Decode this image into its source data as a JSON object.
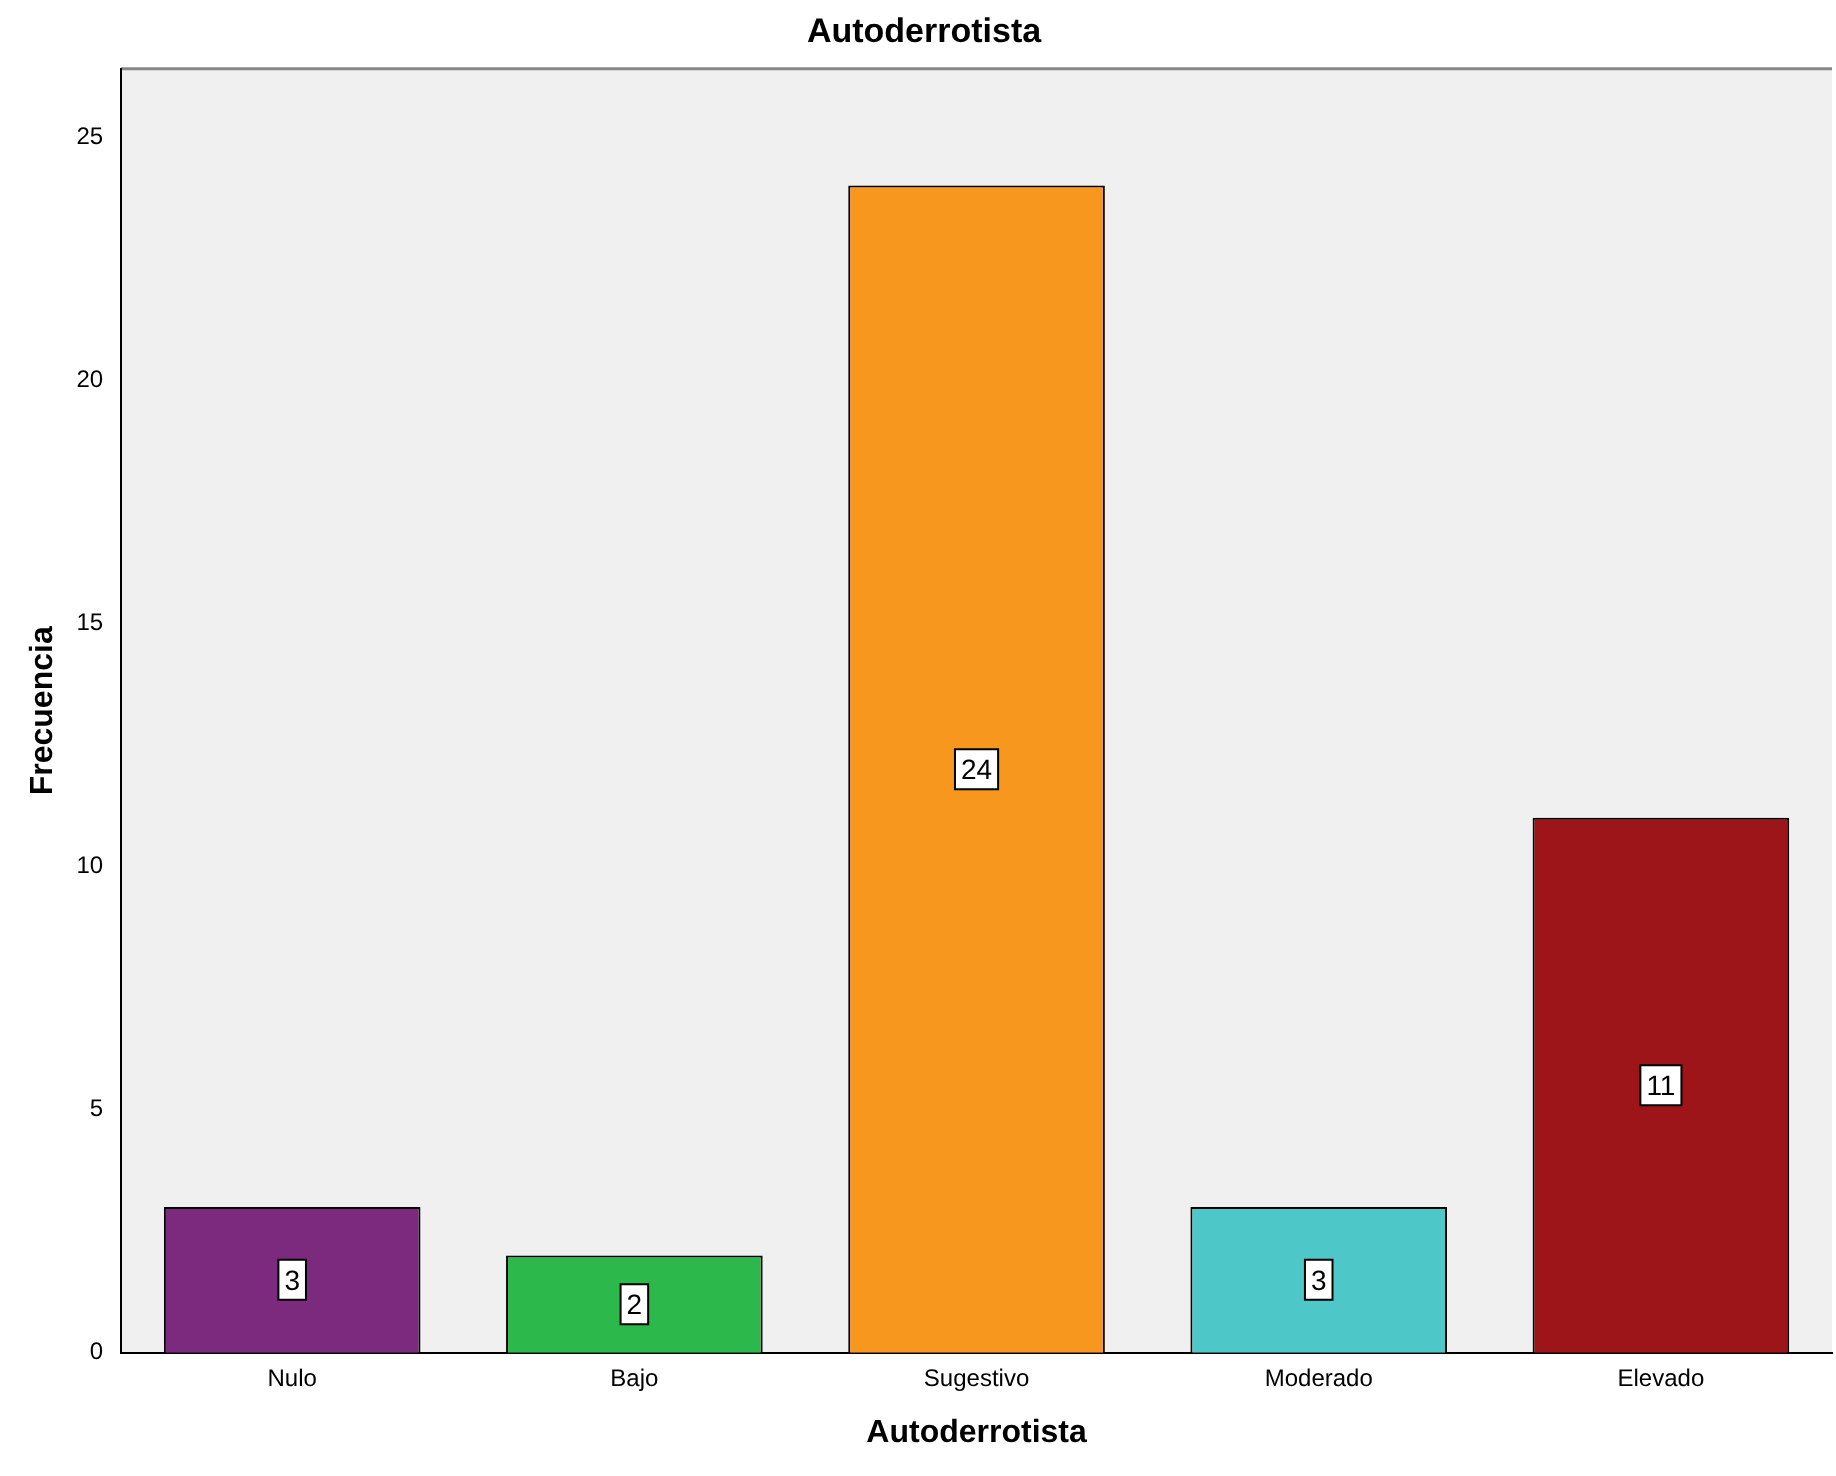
{
  "chart_data": {
    "type": "bar",
    "title": "Autoderrotista",
    "xlabel": "Autoderrotista",
    "ylabel": "Frecuencia",
    "categories": [
      "Nulo",
      "Bajo",
      "Sugestivo",
      "Moderado",
      "Elevado"
    ],
    "values": [
      3,
      2,
      24,
      3,
      11
    ],
    "colors": [
      "#7b2a7e",
      "#2db84b",
      "#f7971e",
      "#4ec7c9",
      "#9d1519"
    ],
    "ylim": [
      0,
      26.4
    ],
    "yticks": [
      0,
      5,
      10,
      15,
      20,
      25
    ],
    "grid": false,
    "legend": false,
    "data_labels": true
  }
}
